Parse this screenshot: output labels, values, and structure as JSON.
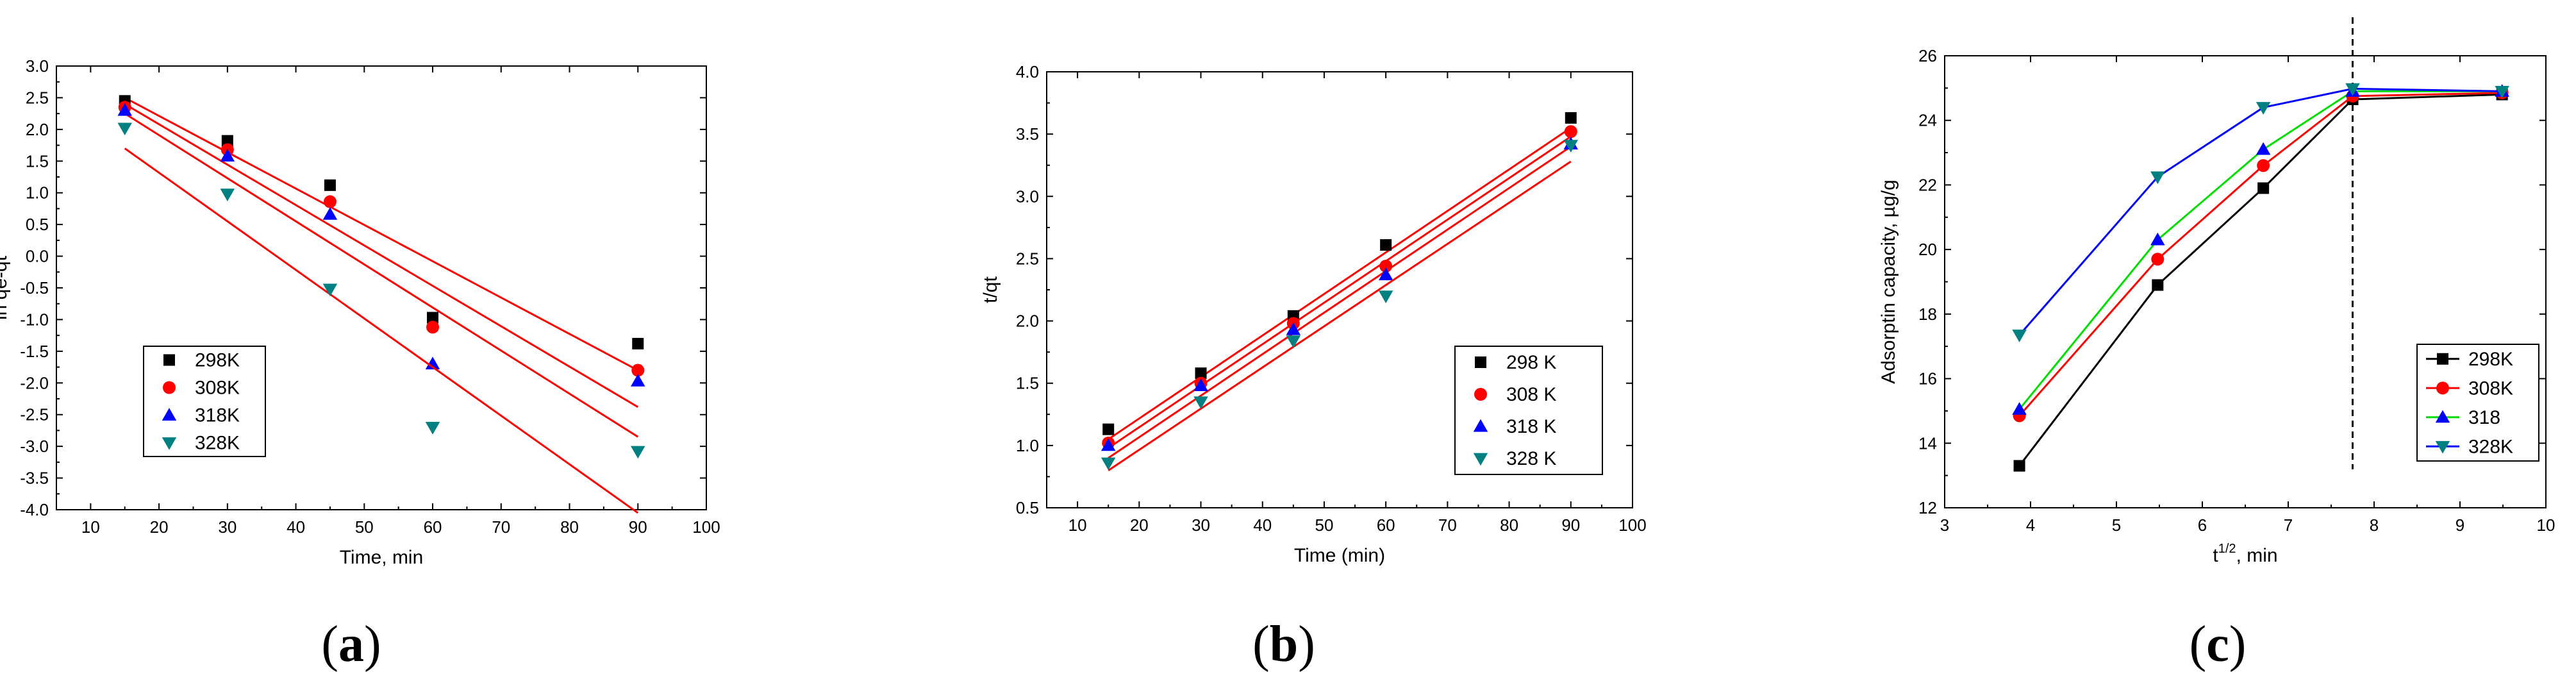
{
  "figure": {
    "panel_labels": [
      {
        "open": "(",
        "letter": "a",
        "close": ")"
      },
      {
        "open": "(",
        "letter": "b",
        "close": ")"
      },
      {
        "open": "(",
        "letter": "c",
        "close": ")"
      }
    ]
  },
  "chart_data": [
    {
      "id": "a",
      "type": "scatter",
      "title": "",
      "xlabel": "Time, min",
      "ylabel": "ln qe-qt",
      "xlim": [
        5,
        100
      ],
      "ylim": [
        -4.0,
        3.0
      ],
      "xticks": [
        10,
        20,
        30,
        40,
        50,
        60,
        70,
        80,
        90,
        100
      ],
      "yticks": [
        -4.0,
        -3.5,
        -3.0,
        -2.5,
        -2.0,
        -1.5,
        -1.0,
        -0.5,
        0.0,
        0.5,
        1.0,
        1.5,
        2.0,
        2.5,
        3.0
      ],
      "ytick_labels": [
        "-4.0",
        "-3.5",
        "-3.0",
        "-2.5",
        "-2.0",
        "-1.5",
        "-1.0",
        "-0.5",
        "0.0",
        "0.5",
        "1.0",
        "1.5",
        "2.0",
        "2.5",
        "3.0"
      ],
      "legend_position": "bottom-left",
      "fit_color": "#ff0000",
      "series": [
        {
          "name": "298K",
          "marker": "square",
          "color": "#000000",
          "x": [
            15,
            30,
            45,
            60,
            90
          ],
          "y": [
            2.45,
            1.82,
            1.12,
            -0.97,
            -1.38
          ],
          "fit": [
            2.5,
            -1.8
          ]
        },
        {
          "name": "308K",
          "marker": "circle",
          "color": "#ff0000",
          "x": [
            15,
            30,
            45,
            60,
            90
          ],
          "y": [
            2.35,
            1.68,
            0.86,
            -1.12,
            -1.8
          ],
          "fit": [
            2.4,
            -2.38
          ]
        },
        {
          "name": "318K",
          "marker": "triangle-up",
          "color": "#0000ff",
          "x": [
            15,
            30,
            45,
            60,
            90
          ],
          "y": [
            2.3,
            1.58,
            0.66,
            -1.7,
            -1.97
          ],
          "fit": [
            2.25,
            -2.85
          ]
        },
        {
          "name": "328K",
          "marker": "triangle-down",
          "color": "#008080",
          "x": [
            15,
            30,
            45,
            60,
            90
          ],
          "y": [
            2.02,
            0.98,
            -0.52,
            -2.7,
            -3.08
          ],
          "fit": [
            1.7,
            -4.05
          ]
        }
      ]
    },
    {
      "id": "b",
      "type": "scatter",
      "title": "",
      "xlabel": "Time (min)",
      "ylabel": "t/qt",
      "xlim": [
        5,
        100
      ],
      "ylim": [
        0.5,
        4.0
      ],
      "xticks": [
        10,
        20,
        30,
        40,
        50,
        60,
        70,
        80,
        90,
        100
      ],
      "yticks": [
        0.5,
        1.0,
        1.5,
        2.0,
        2.5,
        3.0,
        3.5,
        4.0
      ],
      "ytick_labels": [
        "0.5",
        "1.0",
        "1.5",
        "2.0",
        "2.5",
        "3.0",
        "3.5",
        "4.0"
      ],
      "legend_position": "bottom-right",
      "fit_color": "#ff0000",
      "series": [
        {
          "name": "298 K",
          "marker": "square",
          "color": "#000000",
          "x": [
            15,
            30,
            45,
            60,
            90
          ],
          "y": [
            1.13,
            1.58,
            2.04,
            2.61,
            3.63
          ],
          "fit": [
            1.05,
            3.55
          ]
        },
        {
          "name": "308 K",
          "marker": "circle",
          "color": "#ff0000",
          "x": [
            15,
            30,
            45,
            60,
            90
          ],
          "y": [
            1.02,
            1.5,
            1.98,
            2.44,
            3.52
          ],
          "fit": [
            0.98,
            3.48
          ]
        },
        {
          "name": "318 K",
          "marker": "triangle-up",
          "color": "#0000ff",
          "x": [
            15,
            30,
            45,
            60,
            90
          ],
          "y": [
            1.0,
            1.48,
            1.93,
            2.37,
            3.42
          ],
          "fit": [
            0.9,
            3.4
          ]
        },
        {
          "name": "328 K",
          "marker": "triangle-down",
          "color": "#008080",
          "x": [
            15,
            30,
            45,
            60,
            90
          ],
          "y": [
            0.86,
            1.35,
            1.84,
            2.2,
            3.41
          ],
          "fit": [
            0.8,
            3.28
          ]
        }
      ]
    },
    {
      "id": "c",
      "type": "line",
      "title": "",
      "xlabel_base": "t",
      "xlabel_sup": "1/2",
      "xlabel_suffix": ", min",
      "ylabel": "Adsorptin capacity, µg/g",
      "xlim": [
        3,
        10
      ],
      "ylim": [
        12,
        26
      ],
      "xticks": [
        3,
        4,
        5,
        6,
        7,
        8,
        9,
        10
      ],
      "yticks": [
        12,
        14,
        16,
        18,
        20,
        22,
        24,
        26
      ],
      "ytick_labels": [
        "12",
        "14",
        "16",
        "18",
        "20",
        "22",
        "24",
        "26"
      ],
      "vline_x": 7.75,
      "legend_position": "right",
      "series": [
        {
          "name": "298K",
          "marker": "square",
          "color": "#000000",
          "x": [
            3.87,
            5.48,
            6.71,
            7.75,
            9.49
          ],
          "y": [
            13.3,
            18.9,
            21.9,
            24.65,
            24.8
          ]
        },
        {
          "name": "308K",
          "marker": "circle",
          "color": "#ff0000",
          "x": [
            3.87,
            5.48,
            6.71,
            7.75,
            9.49
          ],
          "y": [
            14.85,
            19.7,
            22.6,
            24.75,
            24.85
          ]
        },
        {
          "name": "318",
          "marker": "triangle-up",
          "color": "#0000ff",
          "line_color": "#00dd00",
          "x": [
            3.87,
            5.48,
            6.71,
            7.75,
            9.49
          ],
          "y": [
            15.05,
            20.3,
            23.1,
            24.9,
            24.9
          ]
        },
        {
          "name": "328K",
          "marker": "triangle-down",
          "color": "#008080",
          "line_color": "#0000ff",
          "x": [
            3.87,
            5.48,
            6.71,
            7.75,
            9.49
          ],
          "y": [
            17.35,
            22.25,
            24.4,
            24.98,
            24.9
          ]
        }
      ]
    }
  ]
}
